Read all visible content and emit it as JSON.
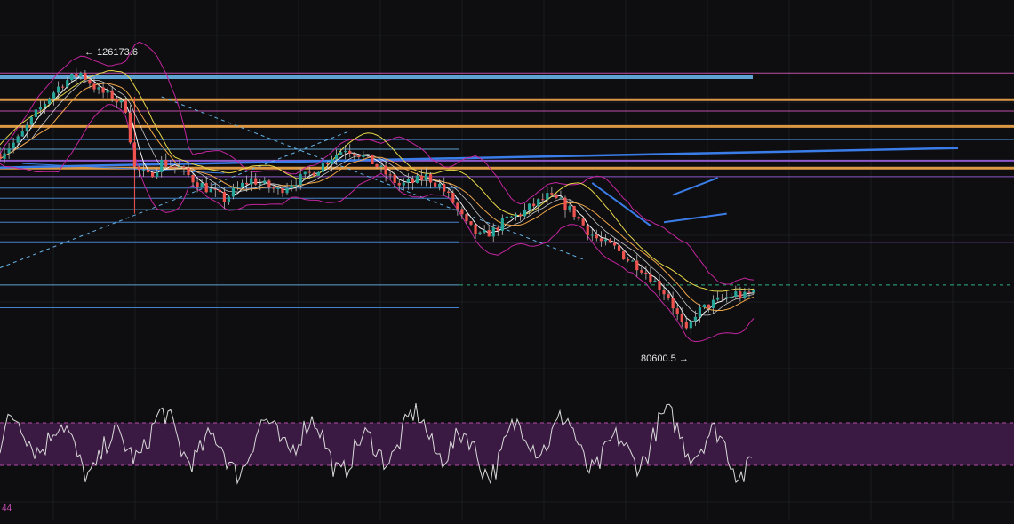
{
  "colors": {
    "background": "#0e0e10",
    "grid": "#1b1c22",
    "candle_up": "#26a69a",
    "candle_down": "#ef5350",
    "wick": "#b9b9b9",
    "ma_fast": "#f5f5f5",
    "ma_yellow": "#e8d84a",
    "ma_orange": "#f0a548",
    "band": "#c2259e",
    "level_blue": "#4a8fe0",
    "level_lightblue": "#67b4e8",
    "level_orange": "#f2a64a",
    "level_purple": "#9b5fe0",
    "level_pink": "#d256b8",
    "trend_blue": "#3a7de8",
    "current_price": "#2fb07d",
    "osc_line": "#d9d9d9",
    "osc_zone": "#3a1a42",
    "osc_border": "#b24aa5"
  },
  "annotations": {
    "high_label": "← 126173.6",
    "low_label": "80600.5 →"
  },
  "oscillator": {
    "corner_value": "44"
  },
  "chart_data": {
    "type": "candlestick",
    "price_range": [
      72000,
      131500
    ],
    "annotations": [
      {
        "text": "126173.6",
        "value": 126173.6,
        "kind": "high"
      },
      {
        "text": "80600.5",
        "value": 80600.5,
        "kind": "low"
      }
    ],
    "price_path": [
      [
        0,
        112000
      ],
      [
        4,
        114500
      ],
      [
        8,
        119000
      ],
      [
        11,
        122000
      ],
      [
        14,
        124500
      ],
      [
        18,
        126173.6
      ],
      [
        22,
        123000
      ],
      [
        25,
        122000
      ],
      [
        28,
        120000
      ],
      [
        30,
        109500
      ],
      [
        33,
        108000
      ],
      [
        36,
        110500
      ],
      [
        40,
        109500
      ],
      [
        43,
        107500
      ],
      [
        47,
        105500
      ],
      [
        50,
        104000
      ],
      [
        53,
        106000
      ],
      [
        56,
        107500
      ],
      [
        59,
        106500
      ],
      [
        62,
        105500
      ],
      [
        65,
        107000
      ],
      [
        68,
        108000
      ],
      [
        71,
        109500
      ],
      [
        74,
        111500
      ],
      [
        77,
        113000
      ],
      [
        80,
        112000
      ],
      [
        83,
        110500
      ],
      [
        86,
        108500
      ],
      [
        89,
        106500
      ],
      [
        92,
        107000
      ],
      [
        95,
        108000
      ],
      [
        98,
        106500
      ],
      [
        101,
        103500
      ],
      [
        104,
        99500
      ],
      [
        107,
        97500
      ],
      [
        110,
        98500
      ],
      [
        113,
        100500
      ],
      [
        116,
        101500
      ],
      [
        119,
        103000
      ],
      [
        122,
        104500
      ],
      [
        125,
        103500
      ],
      [
        128,
        101500
      ],
      [
        131,
        98500
      ],
      [
        134,
        96500
      ],
      [
        137,
        95500
      ],
      [
        140,
        93500
      ],
      [
        143,
        92000
      ],
      [
        146,
        89500
      ],
      [
        149,
        87000
      ],
      [
        152,
        82000
      ],
      [
        153,
        80600.5
      ],
      [
        155,
        84000
      ],
      [
        158,
        85500
      ],
      [
        161,
        86500
      ],
      [
        164,
        87500
      ],
      [
        166,
        87000
      ],
      [
        168,
        88000
      ]
    ],
    "levels": [
      {
        "value": 126173.6,
        "color": "level_pink",
        "extent": "full",
        "weight": 1
      },
      {
        "value": 125500,
        "color": "level_lightblue",
        "extent": "mid",
        "weight": 5
      },
      {
        "value": 121500,
        "color": "level_orange",
        "extent": "full",
        "weight": 3
      },
      {
        "value": 119500,
        "color": "level_pink",
        "extent": "full",
        "weight": 1
      },
      {
        "value": 116800,
        "color": "level_orange",
        "extent": "full",
        "weight": 3
      },
      {
        "value": 114500,
        "color": "level_blue",
        "extent": "full",
        "weight": 1
      },
      {
        "value": 112800,
        "color": "level_lightblue",
        "extent": "left",
        "weight": 1
      },
      {
        "value": 110800,
        "color": "level_purple",
        "extent": "full",
        "weight": 2
      },
      {
        "value": 109500,
        "color": "level_orange",
        "extent": "full",
        "weight": 3
      },
      {
        "value": 108000,
        "color": "level_purple",
        "extent": "full",
        "weight": 1
      },
      {
        "value": 106000,
        "color": "level_blue",
        "extent": "left",
        "weight": 1
      },
      {
        "value": 104200,
        "color": "level_blue",
        "extent": "left",
        "weight": 1
      },
      {
        "value": 102200,
        "color": "level_lightblue",
        "extent": "left",
        "weight": 1
      },
      {
        "value": 100000,
        "color": "level_blue",
        "extent": "left",
        "weight": 1
      },
      {
        "value": 96500,
        "color": "level_blue",
        "extent": "left",
        "weight": 2
      },
      {
        "value": 96500,
        "color": "level_purple",
        "extent": "right",
        "weight": 1
      },
      {
        "value": 89000,
        "color": "level_lightblue",
        "extent": "left",
        "weight": 1
      },
      {
        "value": 85000,
        "color": "level_blue",
        "extent": "left",
        "weight": 1
      }
    ],
    "current_price": 89000,
    "oscillator_band": [
      30,
      70
    ]
  }
}
